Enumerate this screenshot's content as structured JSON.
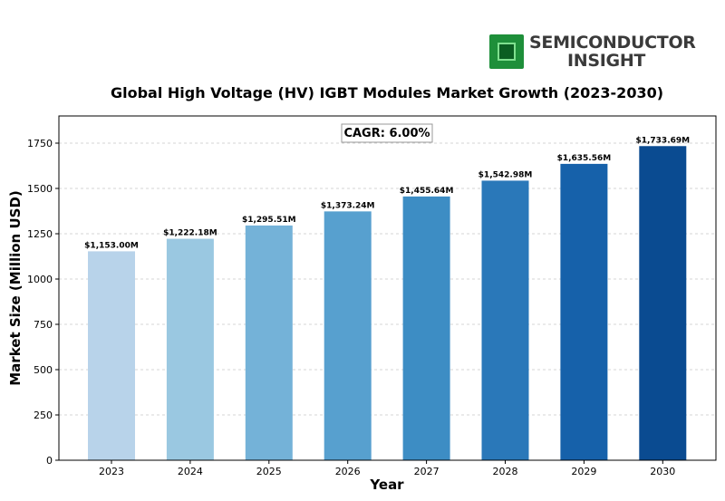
{
  "logo": {
    "line1": "SEMICONDUCTOR",
    "line2": "INSIGHT",
    "icon": "chip-icon"
  },
  "chart_data": {
    "type": "bar",
    "title": "Global High Voltage (HV) IGBT Modules Market Growth (2023-2030)",
    "xlabel": "Year",
    "ylabel": "Market Size (Million USD)",
    "categories": [
      "2023",
      "2024",
      "2025",
      "2026",
      "2027",
      "2028",
      "2029",
      "2030"
    ],
    "values": [
      1153.0,
      1222.18,
      1295.51,
      1373.24,
      1455.64,
      1542.98,
      1635.56,
      1733.69
    ],
    "data_labels": [
      "$1,153.00M",
      "$1,222.18M",
      "$1,295.51M",
      "$1,373.24M",
      "$1,455.64M",
      "$1,542.98M",
      "$1,635.56M",
      "$1,733.69M"
    ],
    "colors": [
      "#b8d3ea",
      "#9ac8e1",
      "#74b2d8",
      "#57a0cf",
      "#3d8dc4",
      "#2a78b9",
      "#1661aa",
      "#0a4b91"
    ],
    "annotation": "CAGR: 6.00%",
    "yticks": [
      0,
      250,
      500,
      750,
      1000,
      1250,
      1500,
      1750
    ],
    "ylim": [
      0,
      1900
    ],
    "grid": true,
    "legend": "none"
  }
}
